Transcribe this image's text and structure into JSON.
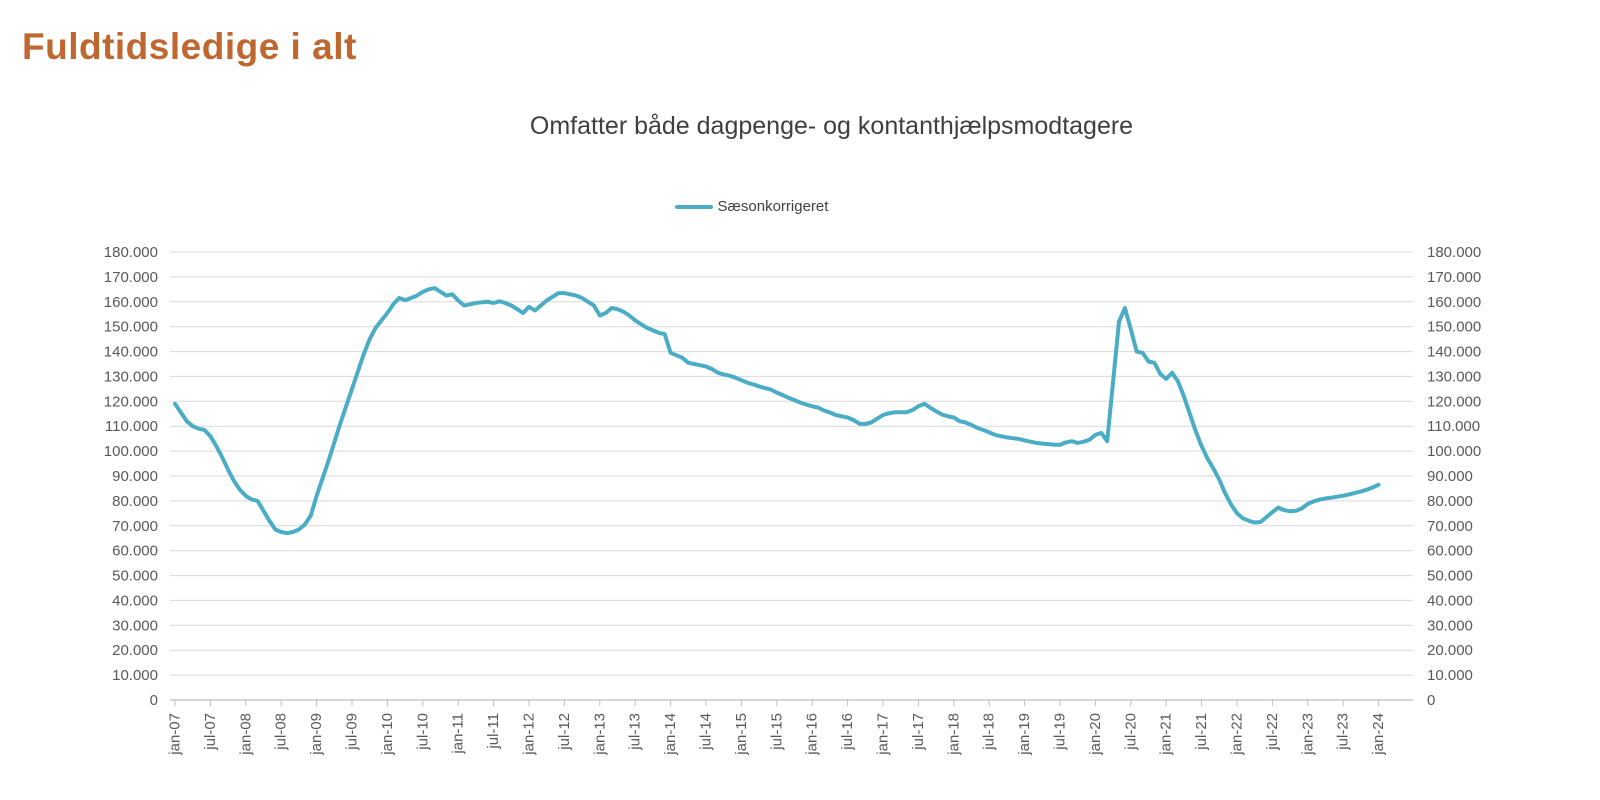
{
  "page": {
    "background": "#FFFFFF"
  },
  "header": {
    "title": "Fuldtidsledige i alt",
    "title_color": "#C0662F"
  },
  "chart": {
    "subtitle": "Omfatter både dagpenge- og kontanthjælpsmodtagere",
    "legend": {
      "label": "Sæsonkorrigeret",
      "swatch_color": "#4BACC6"
    }
  },
  "chart_data": {
    "type": "line",
    "title": "Omfatter både dagpenge- og kontanthjælpsmodtagere",
    "xlabel": "",
    "ylabel": "",
    "ylim": [
      0,
      180000
    ],
    "y_tick_step": 10000,
    "grid": "horizontal",
    "legend_position": "top-center",
    "dual_y_axis": true,
    "gridline_color": "#D9D9D9",
    "axis_color": "#BFBFBF",
    "y_tick_labels": [
      "0",
      "10.000",
      "20.000",
      "30.000",
      "40.000",
      "50.000",
      "60.000",
      "70.000",
      "80.000",
      "90.000",
      "100.000",
      "110.000",
      "120.000",
      "130.000",
      "140.000",
      "150.000",
      "160.000",
      "170.000",
      "180.000"
    ],
    "x_tick_labels": [
      "jan-07",
      "jul-07",
      "jan-08",
      "jul-08",
      "jan-09",
      "jul-09",
      "jan-10",
      "jul-10",
      "jan-11",
      "jul-11",
      "jan-12",
      "jul-12",
      "jan-13",
      "jul-13",
      "jan-14",
      "jul-14",
      "jan-15",
      "jul-15",
      "jan-16",
      "jul-16",
      "jan-17",
      "jul-17",
      "jan-18",
      "jul-18",
      "jan-19",
      "jul-19",
      "jan-20",
      "jul-20",
      "jan-21",
      "jul-21",
      "jan-22",
      "jul-22",
      "jan-23",
      "jul-23",
      "jan-24"
    ],
    "x_frequency": "monthly",
    "x_range": [
      "jan-07",
      "jan-24"
    ],
    "series": [
      {
        "name": "Sæsonkorrigeret",
        "color": "#4BACC6",
        "values": [
          119000,
          115500,
          112000,
          110000,
          109000,
          108500,
          106000,
          102000,
          97500,
          92500,
          88000,
          84500,
          82000,
          80500,
          80000,
          76000,
          72000,
          68500,
          67500,
          67000,
          67500,
          68500,
          70500,
          74000,
          82000,
          89000,
          96000,
          103500,
          111000,
          118000,
          125000,
          132000,
          139000,
          145000,
          149500,
          152500,
          155500,
          159000,
          161500,
          160600,
          161500,
          162500,
          164000,
          165000,
          165500,
          164000,
          162500,
          163000,
          160500,
          158500,
          159000,
          159500,
          159800,
          160000,
          159500,
          160200,
          159500,
          158500,
          157000,
          155500,
          158000,
          156500,
          158500,
          160500,
          162000,
          163500,
          163500,
          163000,
          162500,
          161500,
          160000,
          158500,
          154500,
          155500,
          157500,
          157000,
          156000,
          154500,
          152500,
          151000,
          149500,
          148500,
          147500,
          147000,
          139500,
          138500,
          137500,
          135500,
          135000,
          134500,
          134000,
          133000,
          131500,
          130800,
          130300,
          129500,
          128500,
          127500,
          126800,
          126000,
          125300,
          124700,
          123500,
          122500,
          121400,
          120500,
          119500,
          118700,
          118000,
          117500,
          116300,
          115500,
          114500,
          114000,
          113500,
          112500,
          111000,
          110900,
          111500,
          113000,
          114500,
          115200,
          115600,
          115600,
          115600,
          116500,
          118000,
          119000,
          117500,
          116000,
          114700,
          114000,
          113500,
          112000,
          111500,
          110500,
          109300,
          108500,
          107500,
          106500,
          106000,
          105500,
          105200,
          104900,
          104300,
          103800,
          103300,
          103000,
          102800,
          102600,
          102500,
          103500,
          104000,
          103300,
          103800,
          104600,
          106500,
          107300,
          104000,
          128000,
          152000,
          157500,
          149000,
          140000,
          139500,
          136000,
          135500,
          131000,
          129000,
          131500,
          128000,
          122000,
          115000,
          108000,
          102000,
          97000,
          93000,
          88500,
          83000,
          78500,
          75000,
          73000,
          72000,
          71300,
          71500,
          73500,
          75500,
          77300,
          76300,
          75800,
          76000,
          77000,
          78800,
          79800,
          80500,
          81000,
          81300,
          81700,
          82100,
          82600,
          83200,
          83800,
          84500,
          85400,
          86500
        ]
      }
    ]
  }
}
